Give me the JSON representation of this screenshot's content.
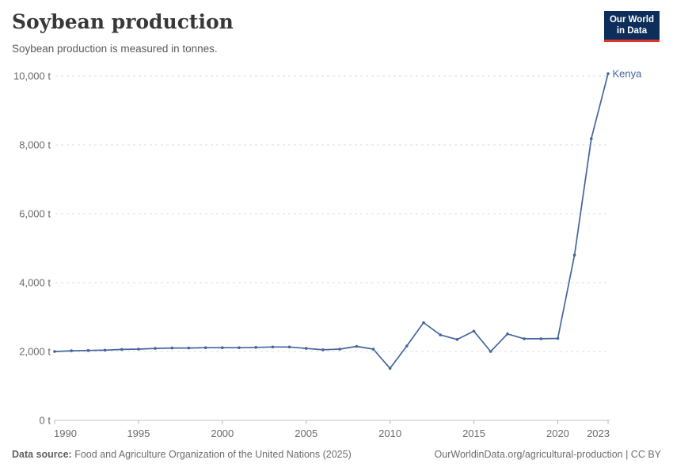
{
  "header": {
    "title": "Soybean production",
    "subtitle": "Soybean production is measured in tonnes.",
    "logo": {
      "line1": "Our World",
      "line2": "in Data"
    }
  },
  "chart_data": {
    "type": "line",
    "title": "Soybean production",
    "ylabel": "",
    "xlabel": "",
    "unit": "t",
    "grid": true,
    "legend_position": "end-of-line",
    "xlim": [
      1990,
      2023
    ],
    "ylim": [
      0,
      10000
    ],
    "x_ticks": [
      1990,
      1995,
      2000,
      2005,
      2010,
      2015,
      2020,
      2023
    ],
    "y_ticks": [
      0,
      2000,
      4000,
      6000,
      8000,
      10000
    ],
    "y_tick_labels": [
      "0 t",
      "2,000 t",
      "4,000 t",
      "6,000 t",
      "8,000 t",
      "10,000 t"
    ],
    "series": [
      {
        "name": "Kenya",
        "color": "#44659c",
        "x": [
          1990,
          1991,
          1992,
          1993,
          1994,
          1995,
          1996,
          1997,
          1998,
          1999,
          2000,
          2001,
          2002,
          2003,
          2004,
          2005,
          2006,
          2007,
          2008,
          2009,
          2010,
          2011,
          2012,
          2013,
          2014,
          2015,
          2016,
          2017,
          2018,
          2019,
          2020,
          2021,
          2022,
          2023
        ],
        "values": [
          2000,
          2020,
          2030,
          2040,
          2060,
          2070,
          2090,
          2100,
          2100,
          2110,
          2110,
          2110,
          2120,
          2130,
          2130,
          2090,
          2050,
          2070,
          2150,
          2070,
          1510,
          2160,
          2840,
          2480,
          2350,
          2590,
          2000,
          2510,
          2370,
          2370,
          2380,
          4800,
          8180,
          10070
        ]
      }
    ],
    "end_label": "Kenya"
  },
  "footer": {
    "source_label": "Data source:",
    "source_text": "Food and Agriculture Organization of the United Nations (2025)",
    "right_text": "OurWorldinData.org/agricultural-production | CC BY"
  },
  "colors": {
    "line": "#44659c",
    "end_label": "#44659c",
    "gridline": "#dcdcdc",
    "axis_line": "#c2c2c2",
    "tick_mark": "#b5b5b5",
    "tick_label": "#6b6b6b",
    "title": "#383838",
    "subtitle": "#5a5a5a",
    "footer": "#6d6d6d",
    "logo_bg": "#0d2e5a",
    "logo_red": "#dc352c"
  }
}
